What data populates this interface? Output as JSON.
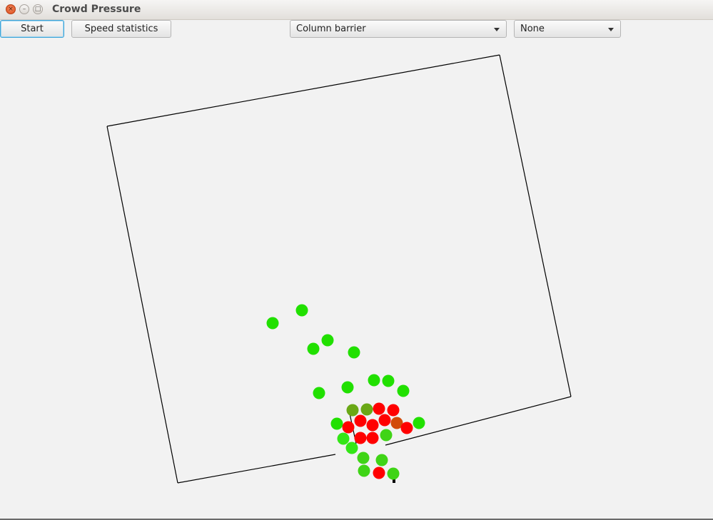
{
  "window": {
    "title": "Crowd Pressure"
  },
  "toolbar": {
    "start_label": "Start",
    "speed_stats_label": "Speed statistics",
    "scenario_select": {
      "selected": "Column barrier"
    },
    "overlay_select": {
      "selected": "None"
    }
  },
  "colors": {
    "agent_free": "#21e000",
    "agent_light": "#33e616",
    "agent_mid": "#3fd416",
    "agent_olive": "#6aa816",
    "agent_orange": "#d24a0a",
    "agent_pressed": "#ff0000"
  },
  "simulation": {
    "agents": [
      {
        "state": "free"
      },
      {
        "state": "free"
      },
      {
        "state": "free"
      },
      {
        "state": "free"
      },
      {
        "state": "free"
      },
      {
        "state": "free"
      },
      {
        "state": "free"
      },
      {
        "state": "free"
      },
      {
        "state": "free"
      },
      {
        "state": "free"
      },
      {
        "state": "olive"
      },
      {
        "state": "olive"
      },
      {
        "state": "pressed"
      },
      {
        "state": "pressed"
      },
      {
        "state": "free"
      },
      {
        "state": "pressed"
      },
      {
        "state": "pressed"
      },
      {
        "state": "pressed"
      },
      {
        "state": "pressed"
      },
      {
        "state": "orange"
      },
      {
        "state": "pressed"
      },
      {
        "state": "free"
      },
      {
        "state": "light"
      },
      {
        "state": "pressed"
      },
      {
        "state": "pressed"
      },
      {
        "state": "mid"
      },
      {
        "state": "light"
      },
      {
        "state": "mid"
      },
      {
        "state": "mid"
      },
      {
        "state": "mid"
      },
      {
        "state": "pressed"
      },
      {
        "state": "mid"
      }
    ]
  }
}
